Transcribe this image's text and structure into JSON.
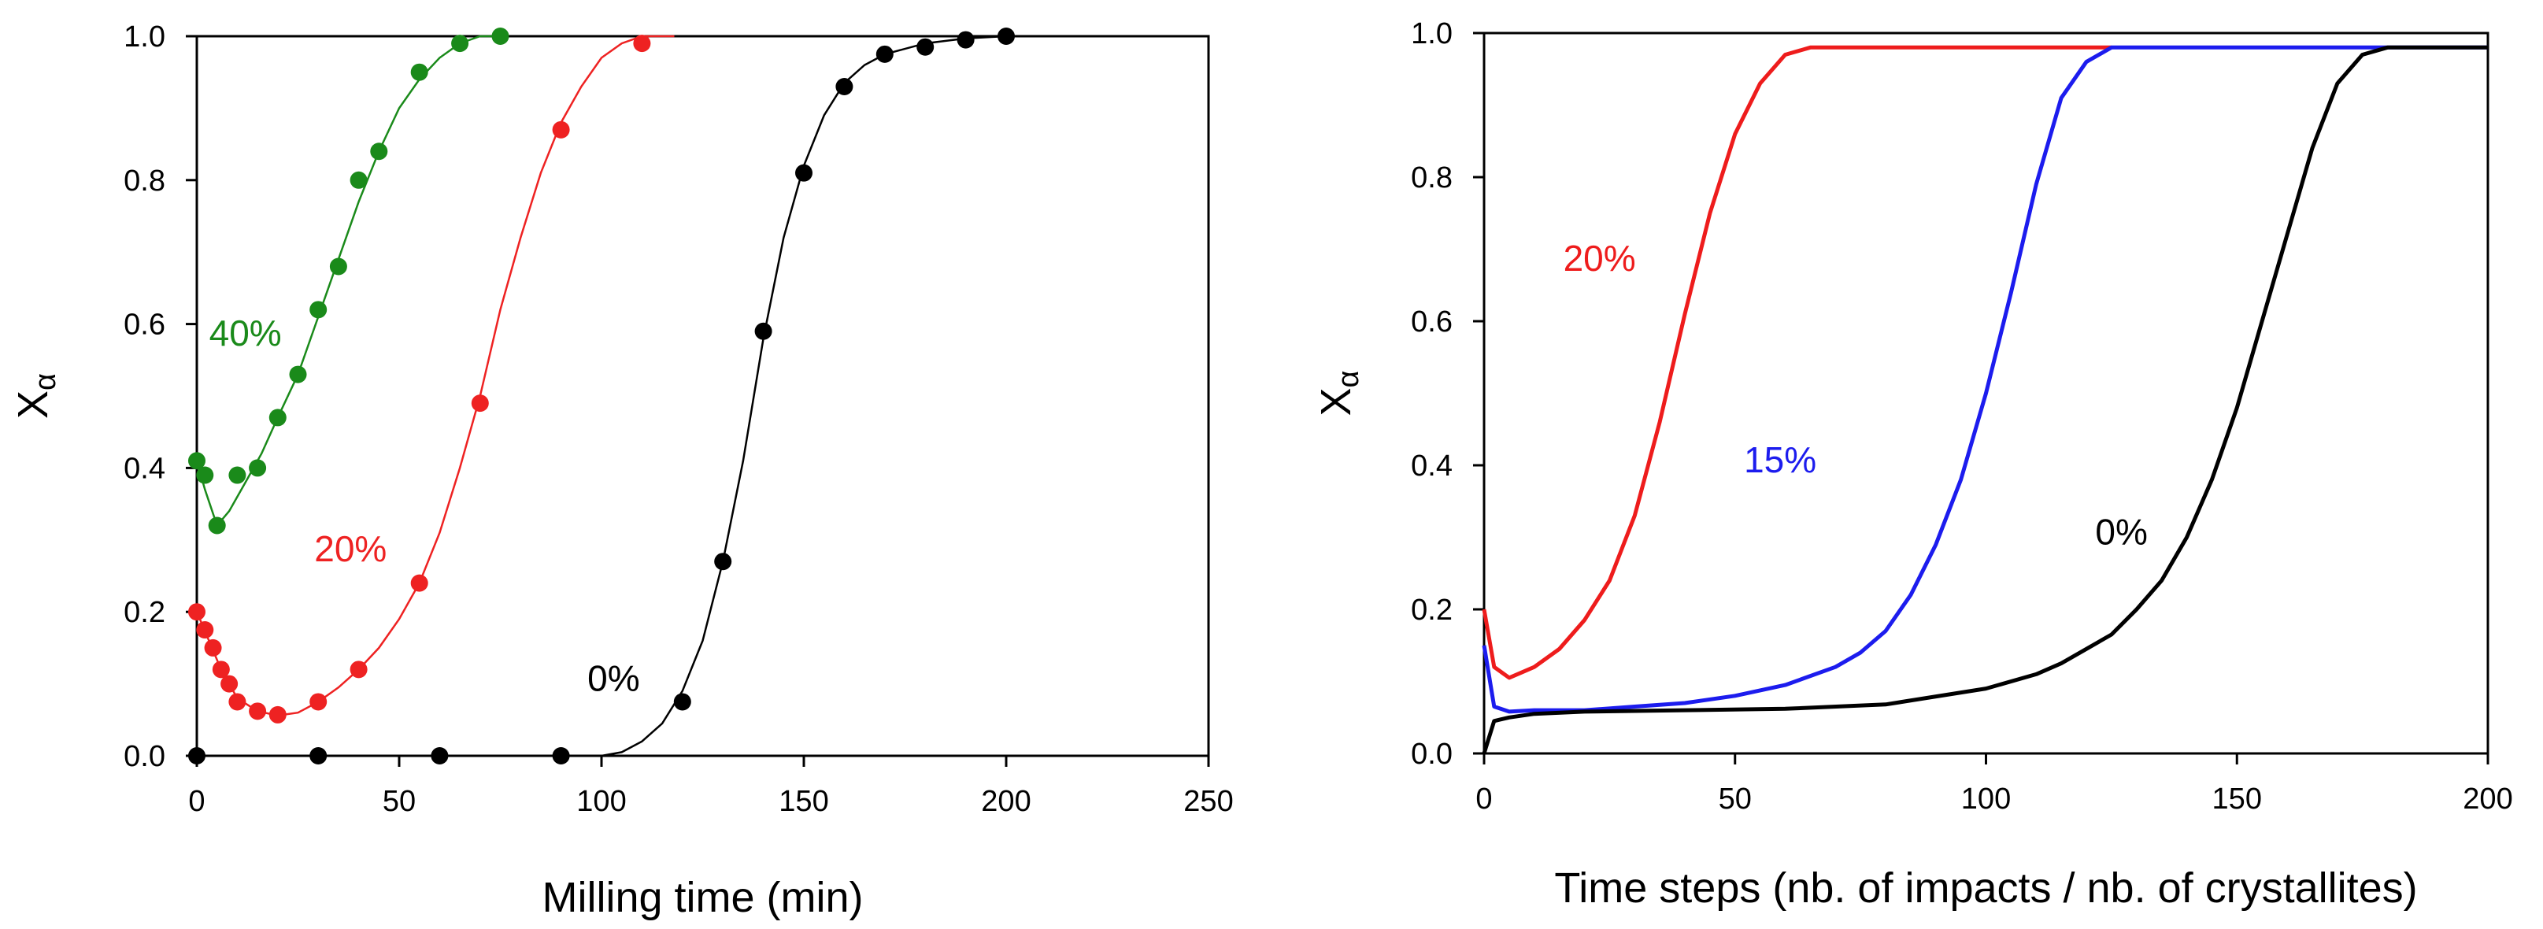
{
  "chart_data": [
    {
      "type": "scatter",
      "title": "",
      "xlabel": "Milling time (min)",
      "ylabel_main": "X",
      "ylabel_sub": "α",
      "xlim": [
        0,
        250
      ],
      "ylim": [
        0,
        1.0
      ],
      "x_ticks": [
        0,
        50,
        100,
        150,
        200,
        250
      ],
      "x_tick_labels": [
        "0",
        "50",
        "100",
        "150",
        "200",
        "250"
      ],
      "y_ticks": [
        0,
        0.2,
        0.4,
        0.6,
        0.8,
        1.0
      ],
      "y_tick_labels": [
        "0.0",
        "0.2",
        "0.4",
        "0.6",
        "0.8",
        "1.0"
      ],
      "grid": false,
      "series": [
        {
          "name": "40%",
          "color": "#1a8a1a",
          "points": [
            [
              0,
              0.41
            ],
            [
              2,
              0.39
            ],
            [
              5,
              0.32
            ],
            [
              10,
              0.39
            ],
            [
              15,
              0.4
            ],
            [
              20,
              0.47
            ],
            [
              25,
              0.53
            ],
            [
              30,
              0.62
            ],
            [
              35,
              0.68
            ],
            [
              40,
              0.8
            ],
            [
              45,
              0.84
            ],
            [
              55,
              0.95
            ],
            [
              65,
              0.99
            ],
            [
              75,
              1.0
            ]
          ],
          "fit": [
            [
              0,
              0.41
            ],
            [
              2,
              0.37
            ],
            [
              5,
              0.32
            ],
            [
              8,
              0.34
            ],
            [
              12,
              0.38
            ],
            [
              16,
              0.42
            ],
            [
              20,
              0.47
            ],
            [
              25,
              0.53
            ],
            [
              30,
              0.61
            ],
            [
              35,
              0.69
            ],
            [
              40,
              0.77
            ],
            [
              45,
              0.84
            ],
            [
              50,
              0.9
            ],
            [
              55,
              0.94
            ],
            [
              60,
              0.97
            ],
            [
              65,
              0.99
            ],
            [
              70,
              1.0
            ],
            [
              75,
              1.0
            ]
          ]
        },
        {
          "name": "20%",
          "color": "#ee2222",
          "points": [
            [
              0,
              0.2
            ],
            [
              2,
              0.175
            ],
            [
              4,
              0.15
            ],
            [
              6,
              0.12
            ],
            [
              8,
              0.1
            ],
            [
              10,
              0.075
            ],
            [
              15,
              0.062
            ],
            [
              20,
              0.057
            ],
            [
              30,
              0.075
            ],
            [
              40,
              0.12
            ],
            [
              55,
              0.24
            ],
            [
              70,
              0.49
            ],
            [
              90,
              0.87
            ],
            [
              110,
              0.99
            ]
          ],
          "fit": [
            [
              0,
              0.2
            ],
            [
              3,
              0.16
            ],
            [
              6,
              0.12
            ],
            [
              10,
              0.08
            ],
            [
              15,
              0.062
            ],
            [
              20,
              0.056
            ],
            [
              25,
              0.06
            ],
            [
              30,
              0.075
            ],
            [
              35,
              0.095
            ],
            [
              40,
              0.12
            ],
            [
              45,
              0.15
            ],
            [
              50,
              0.19
            ],
            [
              55,
              0.24
            ],
            [
              60,
              0.31
            ],
            [
              65,
              0.4
            ],
            [
              70,
              0.5
            ],
            [
              75,
              0.62
            ],
            [
              80,
              0.72
            ],
            [
              85,
              0.81
            ],
            [
              90,
              0.88
            ],
            [
              95,
              0.93
            ],
            [
              100,
              0.97
            ],
            [
              105,
              0.99
            ],
            [
              110,
              1.0
            ],
            [
              118,
              1.0
            ]
          ]
        },
        {
          "name": "0%",
          "color": "#000000",
          "points": [
            [
              0,
              0.0
            ],
            [
              30,
              0.0
            ],
            [
              60,
              0.0
            ],
            [
              90,
              0.0
            ],
            [
              120,
              0.075
            ],
            [
              130,
              0.27
            ],
            [
              140,
              0.59
            ],
            [
              150,
              0.81
            ],
            [
              160,
              0.93
            ],
            [
              170,
              0.975
            ],
            [
              180,
              0.985
            ],
            [
              190,
              0.995
            ],
            [
              200,
              1.0
            ]
          ],
          "fit": [
            [
              0,
              0.0
            ],
            [
              100,
              0.0
            ],
            [
              105,
              0.005
            ],
            [
              110,
              0.02
            ],
            [
              115,
              0.045
            ],
            [
              120,
              0.09
            ],
            [
              125,
              0.16
            ],
            [
              130,
              0.27
            ],
            [
              135,
              0.41
            ],
            [
              140,
              0.58
            ],
            [
              145,
              0.72
            ],
            [
              150,
              0.82
            ],
            [
              155,
              0.89
            ],
            [
              160,
              0.935
            ],
            [
              165,
              0.96
            ],
            [
              170,
              0.975
            ],
            [
              180,
              0.99
            ],
            [
              190,
              0.997
            ],
            [
              200,
              1.0
            ],
            [
              220,
              1.0
            ]
          ]
        }
      ],
      "annotations": [
        {
          "text": "40%",
          "x": 12,
          "y": 0.57,
          "color": "#1a8a1a"
        },
        {
          "text": "20%",
          "x": 38,
          "y": 0.27,
          "color": "#ee2222"
        },
        {
          "text": "0%",
          "x": 103,
          "y": 0.09,
          "color": "#000000"
        }
      ]
    },
    {
      "type": "line",
      "title": "",
      "xlabel": "Time steps (nb. of impacts / nb. of crystallites)",
      "ylabel_main": "X",
      "ylabel_sub": "α",
      "xlim": [
        0,
        200
      ],
      "ylim": [
        0,
        1.0
      ],
      "x_ticks": [
        0,
        50,
        100,
        150,
        200
      ],
      "x_tick_labels": [
        "0",
        "50",
        "100",
        "150",
        "200"
      ],
      "y_ticks": [
        0,
        0.2,
        0.4,
        0.6,
        0.8,
        1.0
      ],
      "y_tick_labels": [
        "0.0",
        "0.2",
        "0.4",
        "0.6",
        "0.8",
        "1.0"
      ],
      "grid": false,
      "series": [
        {
          "name": "20%",
          "color": "#ee1c1c",
          "x": [
            0,
            2,
            5,
            10,
            15,
            20,
            25,
            30,
            35,
            40,
            45,
            50,
            55,
            60,
            65,
            70,
            72,
            80,
            100,
            125
          ],
          "values": [
            0.2,
            0.12,
            0.105,
            0.12,
            0.145,
            0.185,
            0.24,
            0.33,
            0.46,
            0.61,
            0.75,
            0.86,
            0.93,
            0.97,
            0.98,
            0.98,
            0.98,
            0.98,
            0.98,
            0.98
          ]
        },
        {
          "name": "15%",
          "color": "#1c1cee",
          "x": [
            0,
            2,
            5,
            10,
            20,
            30,
            40,
            50,
            60,
            70,
            75,
            80,
            85,
            90,
            95,
            100,
            105,
            110,
            115,
            120,
            125,
            130,
            150,
            180,
            200
          ],
          "values": [
            0.15,
            0.065,
            0.058,
            0.06,
            0.06,
            0.065,
            0.07,
            0.08,
            0.095,
            0.12,
            0.14,
            0.17,
            0.22,
            0.29,
            0.38,
            0.5,
            0.64,
            0.79,
            0.91,
            0.96,
            0.98,
            0.98,
            0.98,
            0.98,
            0.98
          ]
        },
        {
          "name": "0%",
          "color": "#000000",
          "x": [
            0,
            2,
            5,
            10,
            20,
            40,
            60,
            80,
            100,
            110,
            115,
            120,
            125,
            130,
            135,
            140,
            145,
            150,
            155,
            160,
            165,
            170,
            175,
            180,
            190,
            200
          ],
          "values": [
            0.0,
            0.045,
            0.05,
            0.055,
            0.058,
            0.06,
            0.062,
            0.068,
            0.09,
            0.11,
            0.125,
            0.145,
            0.165,
            0.2,
            0.24,
            0.3,
            0.38,
            0.48,
            0.6,
            0.72,
            0.84,
            0.93,
            0.97,
            0.98,
            0.98,
            0.98
          ]
        }
      ],
      "annotations": [
        {
          "text": "20%",
          "x": 23,
          "y": 0.67,
          "color": "#ee1c1c"
        },
        {
          "text": "15%",
          "x": 59,
          "y": 0.39,
          "color": "#1c1cee"
        },
        {
          "text": "0%",
          "x": 127,
          "y": 0.29,
          "color": "#000000"
        }
      ]
    }
  ]
}
